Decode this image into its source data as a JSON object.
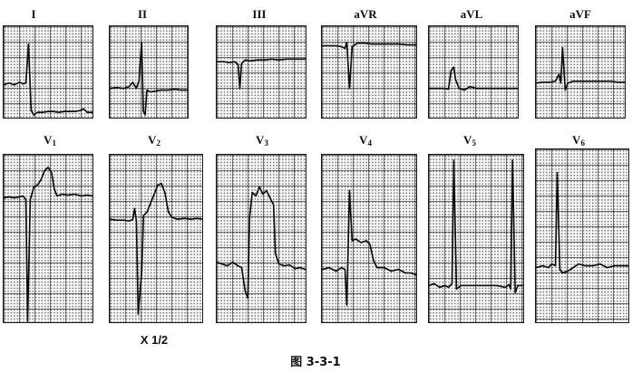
{
  "figure_caption": "图 3-3-1",
  "scale_note": "X 1/2",
  "leads_top": [
    {
      "name": "I"
    },
    {
      "name": "II"
    },
    {
      "name": "III"
    },
    {
      "name": "aVR"
    },
    {
      "name": "aVL"
    },
    {
      "name": "aVF"
    }
  ],
  "leads_bottom": [
    {
      "name": "V",
      "sub": "1"
    },
    {
      "name": "V",
      "sub": "2"
    },
    {
      "name": "V",
      "sub": "3"
    },
    {
      "name": "V",
      "sub": "4"
    },
    {
      "name": "V",
      "sub": "5"
    },
    {
      "name": "V",
      "sub": "6"
    }
  ]
}
